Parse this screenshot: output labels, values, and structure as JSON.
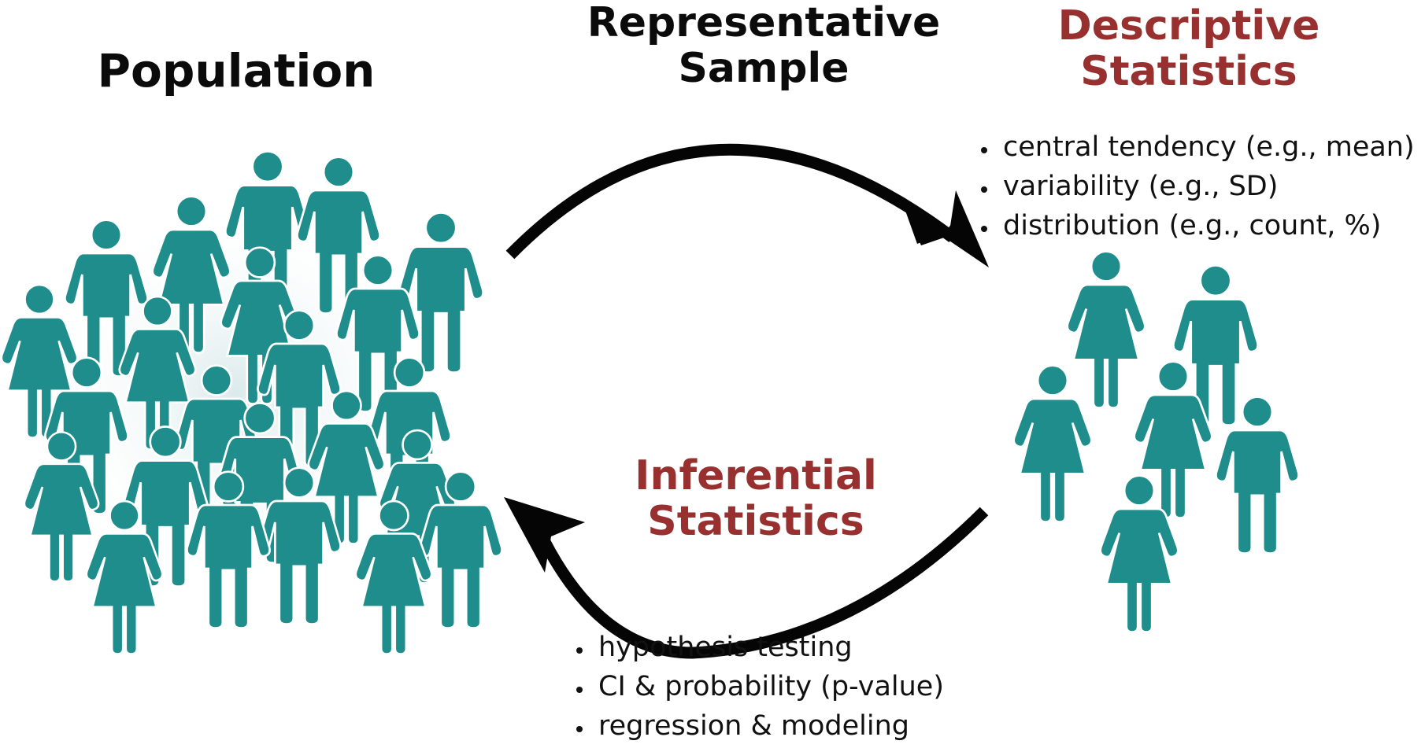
{
  "population": {
    "title": "Population"
  },
  "sample": {
    "title": [
      "Representative",
      "Sample"
    ]
  },
  "descriptive": {
    "title": [
      "Descriptive",
      "Statistics"
    ],
    "items": [
      "central tendency (e.g., mean)",
      "variability (e.g., SD)",
      "distribution (e.g., count, %)"
    ]
  },
  "inferential": {
    "title": [
      "Inferential",
      "Statistics"
    ],
    "items": [
      "hypothesis testing",
      "CI & probability (p-value)",
      "regression & modeling"
    ]
  },
  "colors": {
    "people": "#1f8d8b",
    "accent": "#97302f",
    "arrow": "#050505",
    "halo": "#e6f1f2"
  },
  "icons": {
    "figure": "person-icon",
    "arrow": "curved-arrow-icon"
  }
}
